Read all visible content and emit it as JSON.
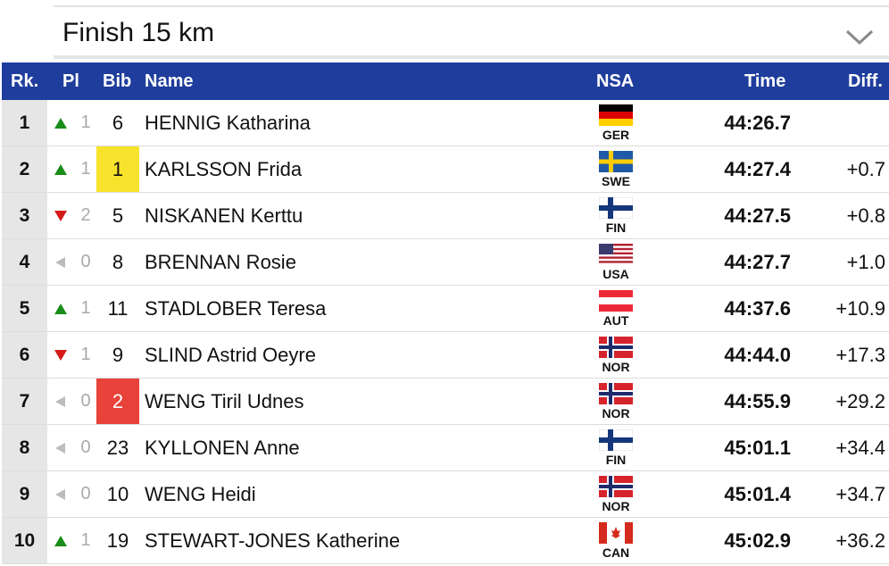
{
  "event_selector": {
    "label": "Finish 15 km",
    "icon": "chevron-down-icon"
  },
  "columns": {
    "rank": "Rk.",
    "pl": "Pl",
    "bib": "Bib",
    "name": "Name",
    "nsa": "NSA",
    "time": "Time",
    "diff": "Diff."
  },
  "colors": {
    "header": "#1f3d9c",
    "up": "#1a8c1a",
    "down": "#d61a1a",
    "neutral": "#bcbcbc",
    "bib_yellow": "#f7e32b",
    "bib_red": "#e8423b"
  },
  "rows": [
    {
      "rank": "1",
      "trend": "up",
      "pl": "1",
      "bib": "6",
      "bib_style": "",
      "name": "HENNIG Katharina",
      "nsa": "GER",
      "time": "44:26.7",
      "diff": ""
    },
    {
      "rank": "2",
      "trend": "up",
      "pl": "1",
      "bib": "1",
      "bib_style": "yellow",
      "name": "KARLSSON Frida",
      "nsa": "SWE",
      "time": "44:27.4",
      "diff": "+0.7"
    },
    {
      "rank": "3",
      "trend": "down",
      "pl": "2",
      "bib": "5",
      "bib_style": "",
      "name": "NISKANEN Kerttu",
      "nsa": "FIN",
      "time": "44:27.5",
      "diff": "+0.8"
    },
    {
      "rank": "4",
      "trend": "same",
      "pl": "0",
      "bib": "8",
      "bib_style": "",
      "name": "BRENNAN Rosie",
      "nsa": "USA",
      "time": "44:27.7",
      "diff": "+1.0"
    },
    {
      "rank": "5",
      "trend": "up",
      "pl": "1",
      "bib": "11",
      "bib_style": "",
      "name": "STADLOBER Teresa",
      "nsa": "AUT",
      "time": "44:37.6",
      "diff": "+10.9"
    },
    {
      "rank": "6",
      "trend": "down",
      "pl": "1",
      "bib": "9",
      "bib_style": "",
      "name": "SLIND Astrid Oeyre",
      "nsa": "NOR",
      "time": "44:44.0",
      "diff": "+17.3"
    },
    {
      "rank": "7",
      "trend": "same",
      "pl": "0",
      "bib": "2",
      "bib_style": "red",
      "name": "WENG Tiril Udnes",
      "nsa": "NOR",
      "time": "44:55.9",
      "diff": "+29.2"
    },
    {
      "rank": "8",
      "trend": "same",
      "pl": "0",
      "bib": "23",
      "bib_style": "",
      "name": "KYLLONEN Anne",
      "nsa": "FIN",
      "time": "45:01.1",
      "diff": "+34.4"
    },
    {
      "rank": "9",
      "trend": "same",
      "pl": "0",
      "bib": "10",
      "bib_style": "",
      "name": "WENG Heidi",
      "nsa": "NOR",
      "time": "45:01.4",
      "diff": "+34.7"
    },
    {
      "rank": "10",
      "trend": "up",
      "pl": "1",
      "bib": "19",
      "bib_style": "",
      "name": "STEWART-JONES Katherine",
      "nsa": "CAN",
      "time": "45:02.9",
      "diff": "+36.2"
    }
  ]
}
